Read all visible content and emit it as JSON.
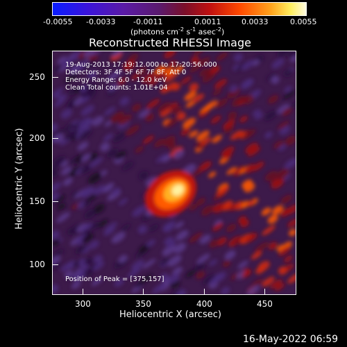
{
  "colorbar": {
    "ticks": [
      "-0.0055",
      "-0.0033",
      "-0.0011",
      "0.0011",
      "0.0033",
      "0.0055"
    ],
    "unit_prefix": "(photons cm",
    "unit_exp1": "-2",
    "unit_mid1": " s",
    "unit_exp2": "-1",
    "unit_mid2": " asec",
    "unit_exp3": "-2",
    "unit_suffix": ")"
  },
  "title": "Reconstructed RHESSI Image",
  "annotations": {
    "time_range": "19-Aug-2013 17:19:12.000 to 17:20:56.000",
    "detectors": "Detectors: 3F 4F 5F 6F 7F 8F, Att 0",
    "energy": "Energy Range: 6.0 - 12.0 keV",
    "clean": "Clean    Total counts: 1.01E+04",
    "peak": "Position of Peak = [375,157]"
  },
  "axes": {
    "xlabel": "Heliocentric X (arcsec)",
    "ylabel": "Heliocentric Y (arcsec)",
    "xticks": [
      "300",
      "350",
      "400",
      "450"
    ],
    "yticks": [
      "250",
      "200",
      "150",
      "100"
    ]
  },
  "timestamp": "16-May-2022 06:59"
}
